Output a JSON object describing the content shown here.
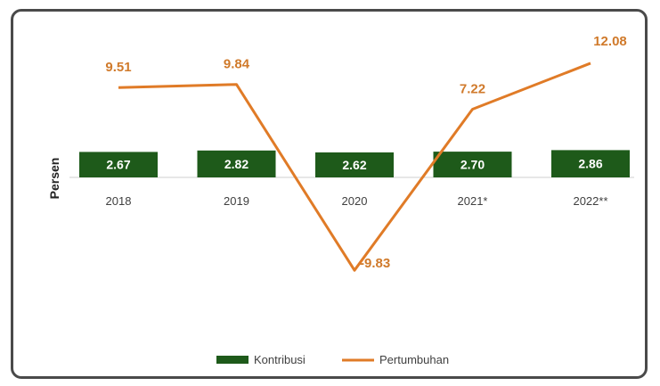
{
  "chart_data": {
    "type": "bar+line",
    "categories": [
      "2018",
      "2019",
      "2020",
      "2021*",
      "2022**"
    ],
    "series": [
      {
        "name": "Kontribusi",
        "type": "bar",
        "color": "#1e5a1a",
        "values": [
          2.67,
          2.82,
          2.62,
          2.7,
          2.86
        ]
      },
      {
        "name": "Pertumbuhan",
        "type": "line",
        "color": "#e07b27",
        "values": [
          9.51,
          9.84,
          -9.83,
          7.22,
          12.08
        ]
      }
    ],
    "ylabel": "Persen",
    "legend_position": "bottom",
    "bar_labels": [
      "2.67",
      "2.82",
      "2.62",
      "2.70",
      "2.86"
    ],
    "line_labels": [
      "9.51",
      "9.84",
      "-9.83",
      "7.22",
      "12.08"
    ],
    "legend": [
      "Kontribusi",
      "Pertumbuhan"
    ]
  }
}
